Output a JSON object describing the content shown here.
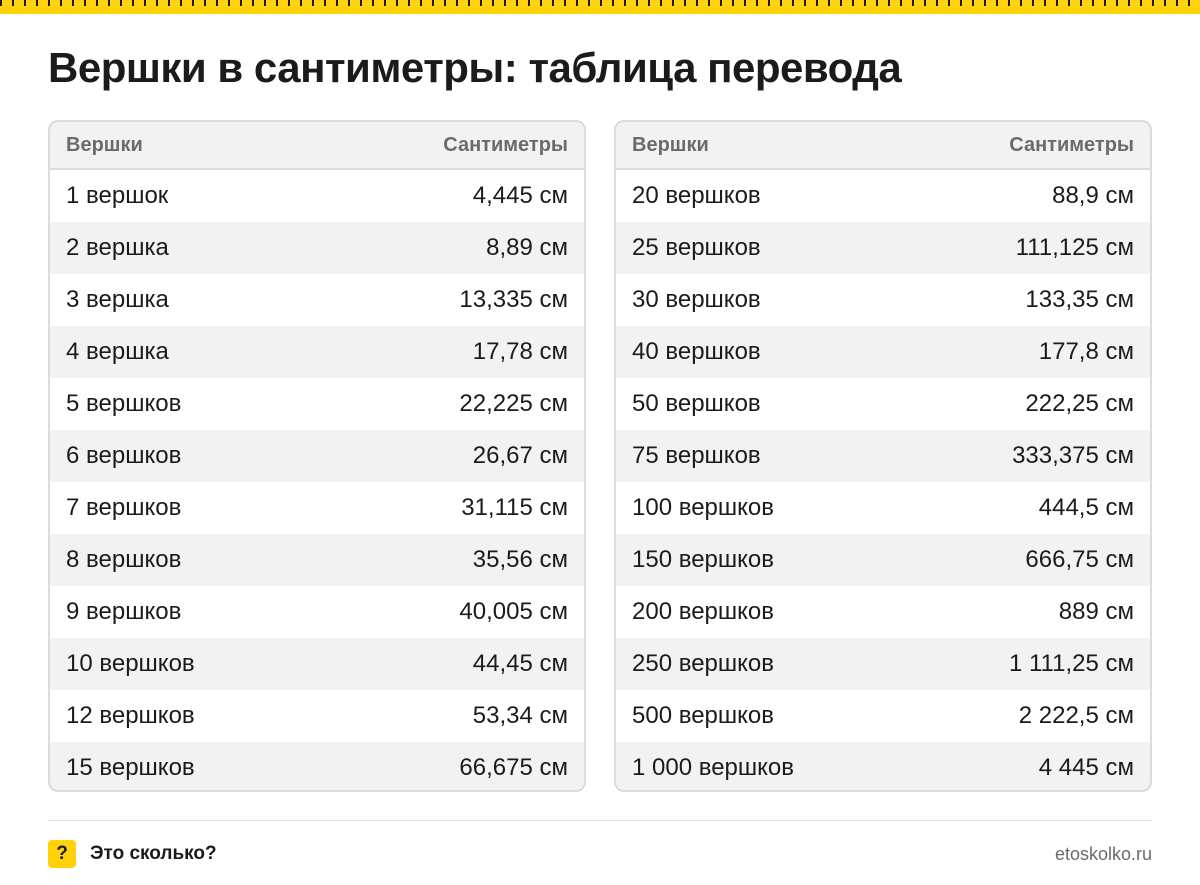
{
  "title": "Вершки в сантиметры: таблица перевода",
  "colors": {
    "accent": "#ffd20a",
    "stripe": "#f2f2f2",
    "border": "#dcdcdc",
    "header_text": "#6b6b6b"
  },
  "tables": [
    {
      "headers": {
        "unit": "Вершки",
        "cm": "Сантиметры"
      },
      "rows": [
        {
          "unit": "1 вершок",
          "cm": "4,445 см"
        },
        {
          "unit": "2 вершка",
          "cm": "8,89 см"
        },
        {
          "unit": "3 вершка",
          "cm": "13,335 см"
        },
        {
          "unit": "4 вершка",
          "cm": "17,78 см"
        },
        {
          "unit": "5 вершков",
          "cm": "22,225 см"
        },
        {
          "unit": "6 вершков",
          "cm": "26,67 см"
        },
        {
          "unit": "7 вершков",
          "cm": "31,115 см"
        },
        {
          "unit": "8 вершков",
          "cm": "35,56 см"
        },
        {
          "unit": "9 вершков",
          "cm": "40,005 см"
        },
        {
          "unit": "10 вершков",
          "cm": "44,45 см"
        },
        {
          "unit": "12 вершков",
          "cm": "53,34 см"
        },
        {
          "unit": "15 вершков",
          "cm": "66,675 см"
        }
      ]
    },
    {
      "headers": {
        "unit": "Вершки",
        "cm": "Сантиметры"
      },
      "rows": [
        {
          "unit": "20 вершков",
          "cm": "88,9 см"
        },
        {
          "unit": "25 вершков",
          "cm": "111,125 см"
        },
        {
          "unit": "30 вершков",
          "cm": "133,35 см"
        },
        {
          "unit": "40 вершков",
          "cm": "177,8 см"
        },
        {
          "unit": "50 вершков",
          "cm": "222,25 см"
        },
        {
          "unit": "75 вершков",
          "cm": "333,375 см"
        },
        {
          "unit": "100 вершков",
          "cm": "444,5 см"
        },
        {
          "unit": "150 вершков",
          "cm": "666,75 см"
        },
        {
          "unit": "200 вершков",
          "cm": "889 см"
        },
        {
          "unit": "250 вершков",
          "cm": "1 111,25 см"
        },
        {
          "unit": "500 вершков",
          "cm": "2 222,5 см"
        },
        {
          "unit": "1 000 вершков",
          "cm": "4 445 см"
        }
      ]
    }
  ],
  "footer": {
    "badge_glyph": "?",
    "brand": "Это сколько?",
    "site": "etoskolko.ru"
  }
}
